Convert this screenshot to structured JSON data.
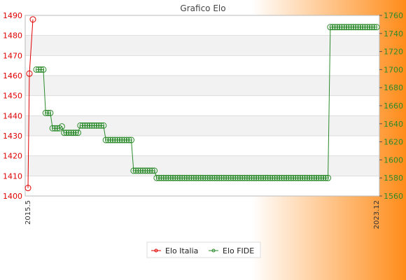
{
  "chart_data": {
    "type": "line",
    "title": "Grafico Elo",
    "xlabel": "",
    "ylabel": "",
    "y_left_lim": [
      1400,
      1490
    ],
    "y_left_ticks": [
      1400,
      1410,
      1420,
      1430,
      1440,
      1450,
      1460,
      1470,
      1480,
      1490
    ],
    "y_right_lim": [
      1560,
      1760
    ],
    "y_right_ticks": [
      1560,
      1580,
      1600,
      1620,
      1640,
      1660,
      1680,
      1700,
      1720,
      1740,
      1760
    ],
    "x_first_label": "2015.5",
    "x_last_label": "2023.12",
    "grid": true,
    "legend_position": "bottom",
    "background_gradient": [
      "#ffffff",
      "#ff8c1a"
    ],
    "series": [
      {
        "name": "Elo Italia",
        "axis": "left",
        "color": "#e00000",
        "values": [
          1404,
          1461,
          1488
        ]
      },
      {
        "name": "Elo FIDE",
        "axis": "right",
        "color": "#2b8a2b",
        "values": [
          1700,
          1700,
          1700,
          1700,
          1652,
          1652,
          1652,
          1635,
          1635,
          1635,
          1635,
          1637,
          1630,
          1630,
          1630,
          1630,
          1630,
          1630,
          1630,
          1638,
          1638,
          1638,
          1638,
          1638,
          1638,
          1638,
          1638,
          1638,
          1638,
          1638,
          1622,
          1622,
          1622,
          1622,
          1622,
          1622,
          1622,
          1622,
          1622,
          1622,
          1622,
          1622,
          1588,
          1588,
          1588,
          1588,
          1588,
          1588,
          1588,
          1588,
          1588,
          1588,
          1580,
          1580,
          1580,
          1580,
          1580,
          1580,
          1580,
          1580,
          1580,
          1580,
          1580,
          1580,
          1580,
          1580,
          1580,
          1580,
          1580,
          1580,
          1580,
          1580,
          1580,
          1580,
          1580,
          1580,
          1580,
          1580,
          1580,
          1580,
          1580,
          1580,
          1580,
          1580,
          1580,
          1580,
          1580,
          1580,
          1580,
          1580,
          1580,
          1580,
          1580,
          1580,
          1580,
          1580,
          1580,
          1580,
          1580,
          1580,
          1580,
          1580,
          1580,
          1580,
          1580,
          1580,
          1580,
          1580,
          1580,
          1580,
          1580,
          1580,
          1580,
          1580,
          1580,
          1580,
          1580,
          1580,
          1580,
          1580,
          1580,
          1580,
          1580,
          1580,
          1580,
          1580,
          1580,
          1747,
          1747,
          1747,
          1747,
          1747,
          1747,
          1747,
          1747,
          1747,
          1747,
          1747,
          1747,
          1747,
          1747,
          1747,
          1747,
          1747,
          1747,
          1747,
          1747,
          1747
        ]
      }
    ]
  }
}
